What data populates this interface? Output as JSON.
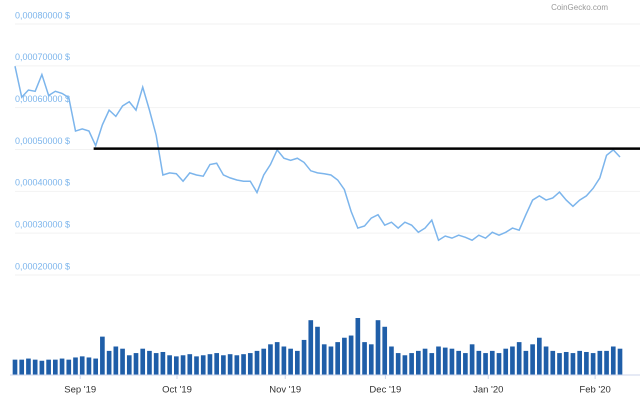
{
  "chart_data": {
    "type": "line",
    "watermark": "CoinGecko.com",
    "xlim": [
      0,
      90
    ],
    "xticks": [
      {
        "value": 9.7,
        "label": "Sep '19"
      },
      {
        "value": 24.1,
        "label": "Oct '19"
      },
      {
        "value": 40.2,
        "label": "Nov '19"
      },
      {
        "value": 55.1,
        "label": "Dec '19"
      },
      {
        "value": 70.4,
        "label": "Jan '20"
      },
      {
        "value": 86.3,
        "label": "Feb '20"
      }
    ],
    "ylim": [
      0.0002,
      0.0008
    ],
    "yticks": [
      {
        "value": 0.0008,
        "label": "0,00080000 $"
      },
      {
        "value": 0.0007,
        "label": "0,00070000 $"
      },
      {
        "value": 0.0006,
        "label": "0,00060000 $"
      },
      {
        "value": 0.0005,
        "label": "0,00050000 $"
      },
      {
        "value": 0.0004,
        "label": "0,00040000 $"
      },
      {
        "value": 0.0003,
        "label": "0,00030000 $"
      },
      {
        "value": 0.0002,
        "label": "0,00020000 $"
      }
    ],
    "grid": true,
    "reference_line": {
      "value": 0.000483,
      "x_start": 11.7,
      "color": "#000000"
    },
    "series": [
      {
        "color": "#7cb5ec",
        "values": [
          0.00068,
          0.000606,
          0.000623,
          0.00062,
          0.00066,
          0.00061,
          0.00062,
          0.000615,
          0.000605,
          0.000525,
          0.00053,
          0.000525,
          0.00049,
          0.00054,
          0.000575,
          0.00056,
          0.000585,
          0.000595,
          0.000575,
          0.00063,
          0.000575,
          0.000515,
          0.00042,
          0.000425,
          0.000423,
          0.000405,
          0.000425,
          0.00042,
          0.000417,
          0.000445,
          0.000448,
          0.00042,
          0.000413,
          0.000408,
          0.000405,
          0.000405,
          0.000378,
          0.00042,
          0.000445,
          0.00048,
          0.00046,
          0.000455,
          0.00046,
          0.00045,
          0.00043,
          0.000425,
          0.000423,
          0.00042,
          0.000408,
          0.000385,
          0.000333,
          0.000293,
          0.000298,
          0.000317,
          0.000325,
          0.0003,
          0.000307,
          0.000293,
          0.000307,
          0.0003,
          0.000283,
          0.000293,
          0.000312,
          0.000264,
          0.000274,
          0.000269,
          0.000276,
          0.000271,
          0.000264,
          0.000276,
          0.000269,
          0.000283,
          0.000276,
          0.000283,
          0.000293,
          0.000288,
          0.000325,
          0.00036,
          0.00037,
          0.00036,
          0.000365,
          0.000379,
          0.00036,
          0.000345,
          0.00036,
          0.00037,
          0.000388,
          0.000413,
          0.000467,
          0.00048,
          0.000463
        ]
      }
    ],
    "volume": {
      "type": "bar",
      "color": "#1f5ea8",
      "values": [
        14,
        14,
        15,
        14,
        13,
        14,
        14,
        15,
        14,
        16,
        17,
        16,
        15,
        35,
        22,
        26,
        24,
        18,
        20,
        24,
        22,
        20,
        21,
        18,
        17,
        18,
        19,
        17,
        18,
        19,
        20,
        18,
        19,
        18,
        19,
        20,
        22,
        24,
        28,
        30,
        26,
        24,
        22,
        32,
        50,
        44,
        28,
        26,
        30,
        34,
        36,
        52,
        30,
        28,
        50,
        44,
        26,
        20,
        18,
        20,
        22,
        24,
        20,
        26,
        25,
        24,
        22,
        20,
        28,
        22,
        20,
        22,
        20,
        24,
        26,
        30,
        22,
        28,
        34,
        26,
        22,
        20,
        21,
        20,
        22,
        21,
        20,
        22,
        22,
        26,
        24
      ]
    }
  }
}
